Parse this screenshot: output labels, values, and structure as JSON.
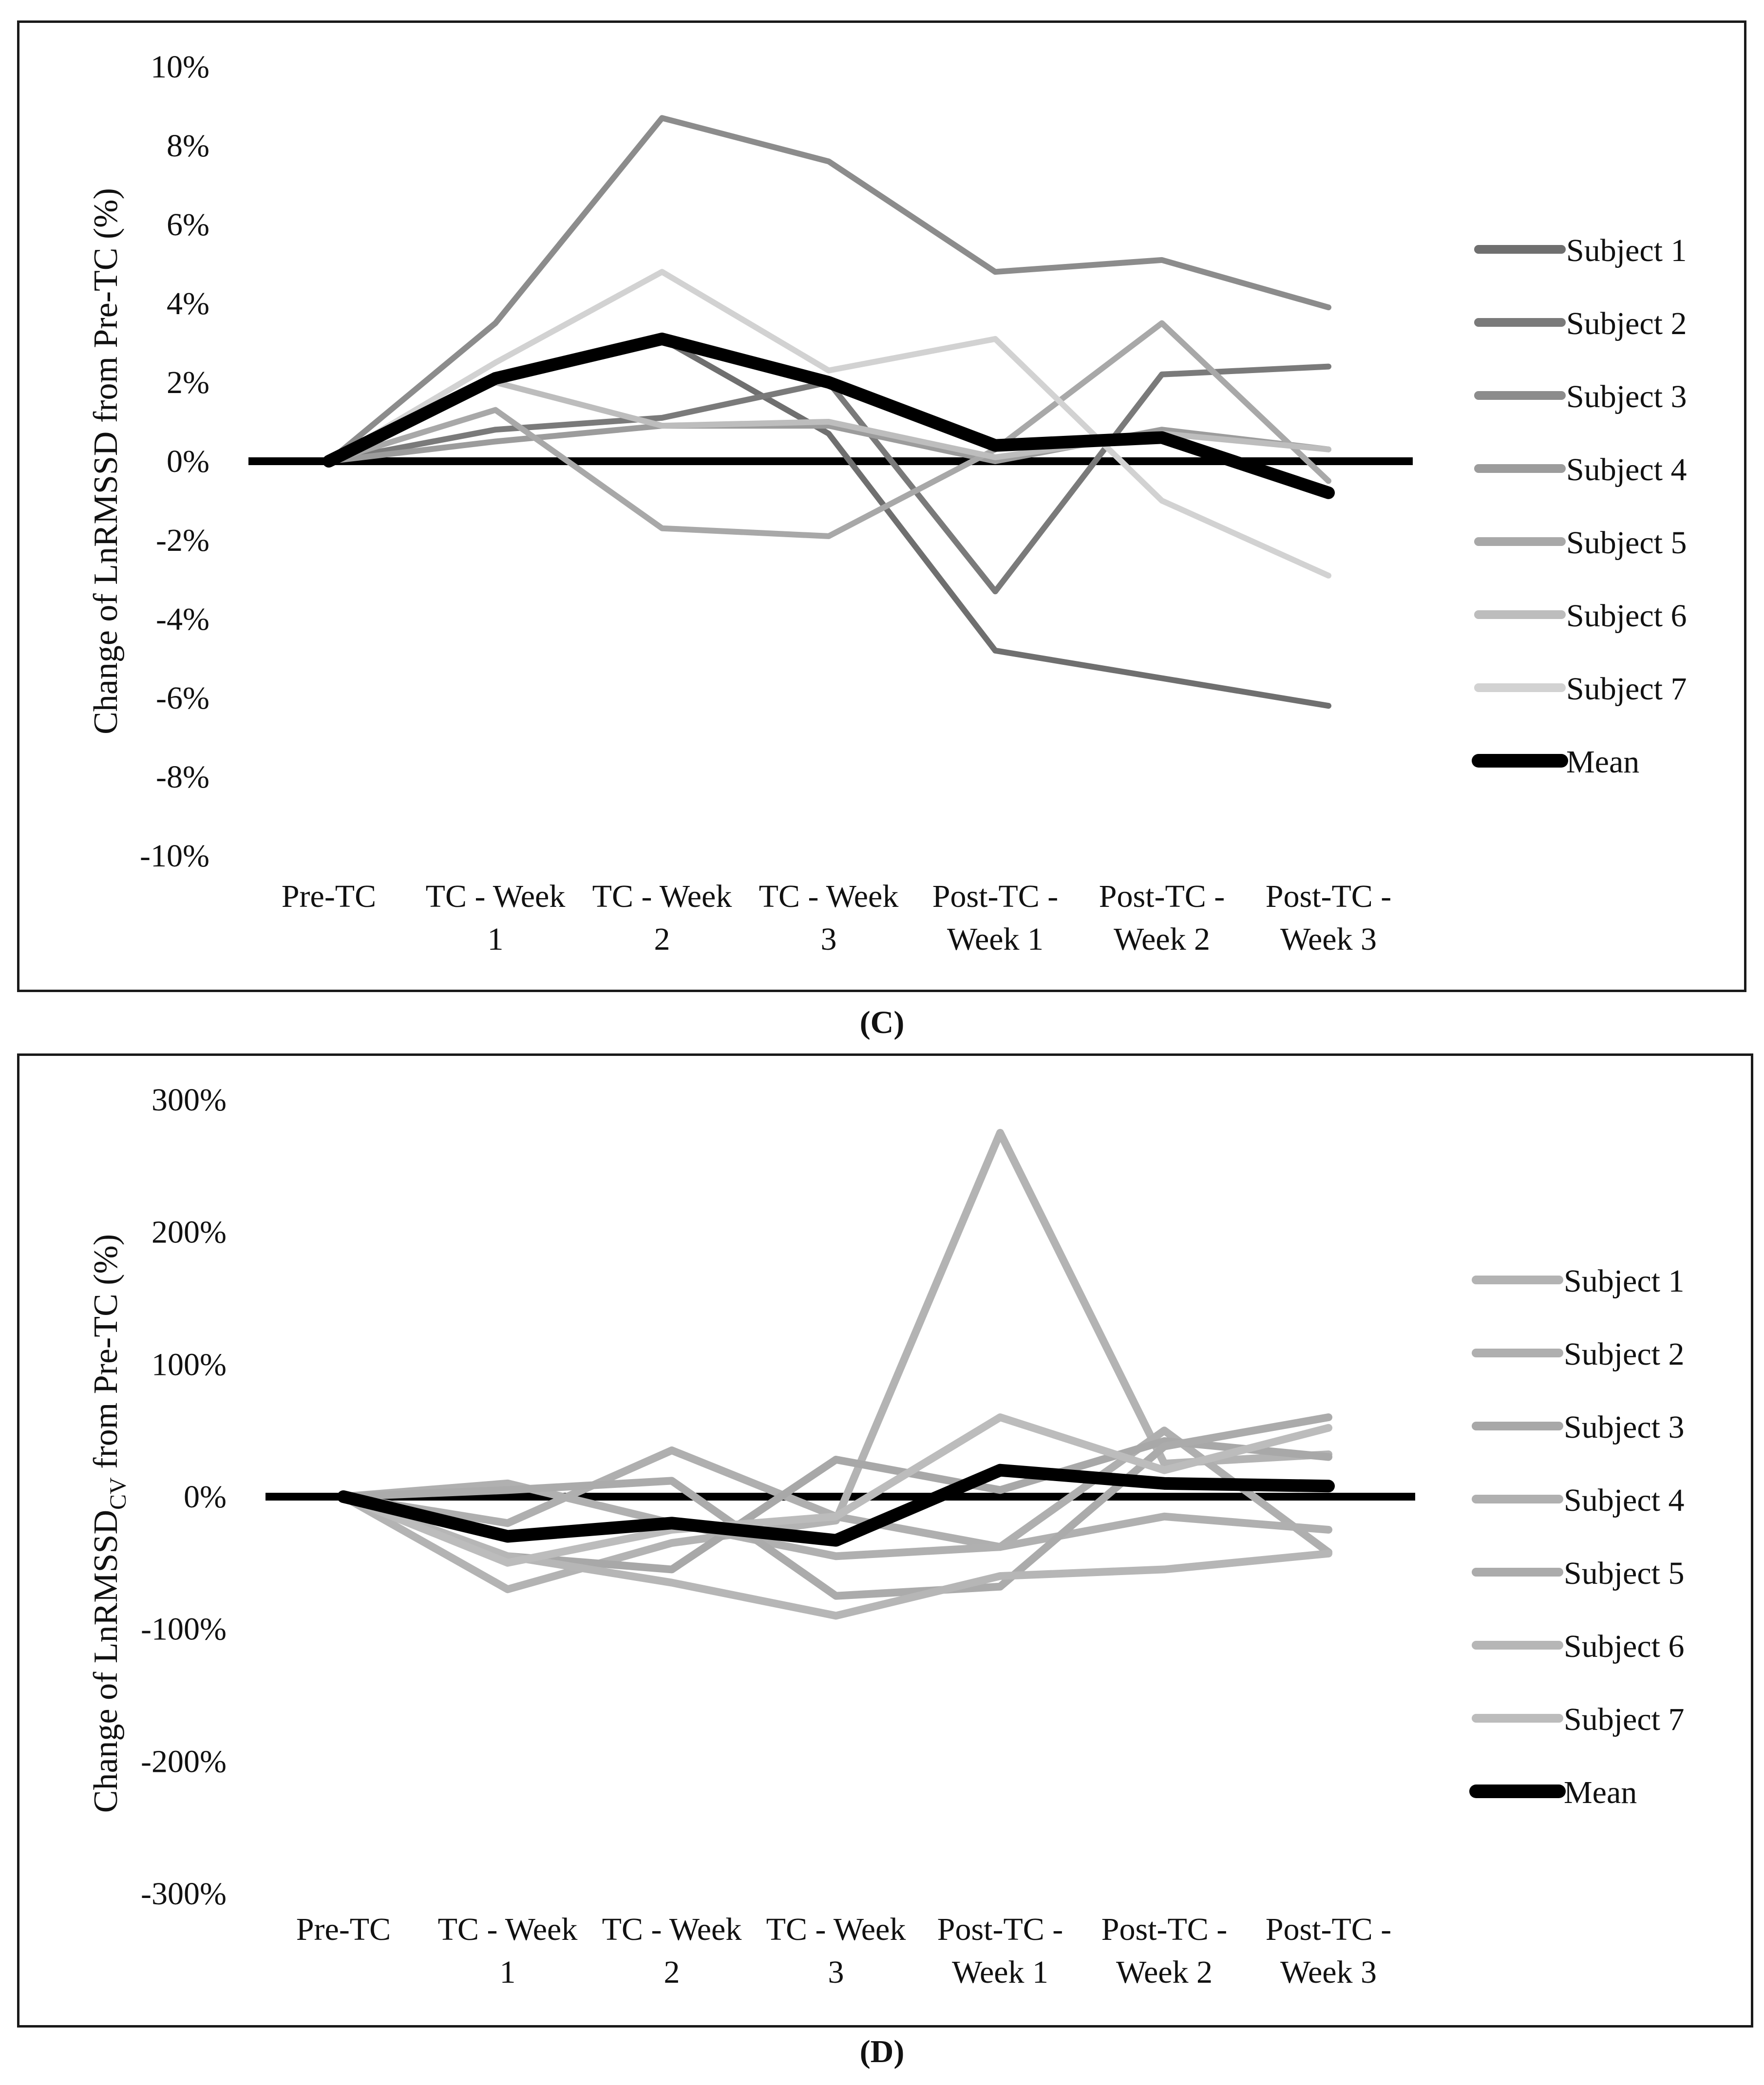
{
  "chart_data": [
    {
      "type": "line",
      "panel": "C",
      "caption": "(C)",
      "ylabel": "Change of LnRMSSD from Pre-TC (%)",
      "ylabel_main": "Change of LnRMSSD",
      "ylabel_sub": "",
      "ylabel_tail": " from Pre-TC (%)",
      "xlabel": "",
      "ylim": [
        -10,
        10
      ],
      "yticks": [
        10,
        8,
        6,
        4,
        2,
        0,
        -2,
        -4,
        -6,
        -8,
        -10
      ],
      "ytick_labels": [
        "10%",
        "8%",
        "6%",
        "4%",
        "2%",
        "0%",
        "-2%",
        "-4%",
        "-6%",
        "-8%",
        "-10%"
      ],
      "categories": [
        "Pre-TC",
        "TC - Week 1",
        "TC - Week 2",
        "TC - Week 3",
        "Post-TC - Week 1",
        "Post-TC - Week 2",
        "Post-TC - Week 3"
      ],
      "category_lines": [
        [
          "Pre-TC"
        ],
        [
          "TC - Week",
          "1"
        ],
        [
          "TC - Week",
          "2"
        ],
        [
          "TC - Week",
          "3"
        ],
        [
          "Post-TC -",
          "Week 1"
        ],
        [
          "Post-TC -",
          "Week 2"
        ],
        [
          "Post-TC -",
          "Week 3"
        ]
      ],
      "legend_position": "right",
      "series": [
        {
          "name": "Subject 1",
          "color": "#6f6f6f",
          "values": [
            0,
            2.1,
            3.1,
            0.7,
            -4.8,
            -5.5,
            -6.2
          ]
        },
        {
          "name": "Subject 2",
          "color": "#7a7a7a",
          "values": [
            0,
            0.8,
            1.1,
            2.0,
            -3.3,
            2.2,
            2.4
          ]
        },
        {
          "name": "Subject 3",
          "color": "#8c8c8c",
          "values": [
            0,
            3.5,
            8.7,
            7.6,
            4.8,
            5.1,
            3.9
          ]
        },
        {
          "name": "Subject 4",
          "color": "#9c9c9c",
          "values": [
            0,
            0.5,
            0.9,
            0.9,
            0.0,
            0.8,
            0.3
          ]
        },
        {
          "name": "Subject 5",
          "color": "#a8a8a8",
          "values": [
            0,
            1.3,
            -1.7,
            -1.9,
            0.3,
            3.5,
            -0.5
          ]
        },
        {
          "name": "Subject 6",
          "color": "#bdbdbd",
          "values": [
            0,
            2.0,
            0.9,
            1.0,
            0.1,
            0.7,
            0.3
          ]
        },
        {
          "name": "Subject 7",
          "color": "#d2d2d2",
          "values": [
            0,
            2.5,
            4.8,
            2.3,
            3.1,
            -1.0,
            -2.9
          ]
        },
        {
          "name": "Mean",
          "color": "#000000",
          "values": [
            0,
            2.1,
            3.1,
            2.0,
            0.4,
            0.6,
            -0.8
          ],
          "bold": true
        }
      ]
    },
    {
      "type": "line",
      "panel": "D",
      "caption": "(D)",
      "ylabel": "Change of LnRMSSDCV from Pre-TC (%)",
      "ylabel_main": "Change of LnRMSSD",
      "ylabel_sub": "CV",
      "ylabel_tail": " from Pre-TC (%)",
      "xlabel": "",
      "ylim": [
        -300,
        300
      ],
      "yticks": [
        300,
        200,
        100,
        0,
        -100,
        -200,
        -300
      ],
      "ytick_labels": [
        "300%",
        "200%",
        "100%",
        "0%",
        "-100%",
        "-200%",
        "-300%"
      ],
      "categories": [
        "Pre-TC",
        "TC - Week 1",
        "TC - Week 2",
        "TC - Week 3",
        "Post-TC - Week 1",
        "Post-TC - Week 2",
        "Post-TC - Week 3"
      ],
      "category_lines": [
        [
          "Pre-TC"
        ],
        [
          "TC - Week",
          "1"
        ],
        [
          "TC - Week",
          "2"
        ],
        [
          "TC - Week",
          "3"
        ],
        [
          "Post-TC -",
          "Week 1"
        ],
        [
          "Post-TC -",
          "Week 2"
        ],
        [
          "Post-TC -",
          "Week 3"
        ]
      ],
      "legend_position": "right",
      "series": [
        {
          "name": "Subject 1",
          "color": "#b3b3b3",
          "values": [
            0,
            -70,
            -35,
            -18,
            275,
            25,
            32
          ]
        },
        {
          "name": "Subject 2",
          "color": "#afafaf",
          "values": [
            0,
            -20,
            35,
            -15,
            -38,
            50,
            -42
          ]
        },
        {
          "name": "Subject 3",
          "color": "#a8a8a8",
          "values": [
            0,
            -45,
            -55,
            28,
            5,
            42,
            30
          ]
        },
        {
          "name": "Subject 4",
          "color": "#b0b0b0",
          "values": [
            0,
            10,
            -20,
            -45,
            -38,
            -15,
            -25
          ]
        },
        {
          "name": "Subject 5",
          "color": "#ababab",
          "values": [
            0,
            5,
            12,
            -75,
            -68,
            38,
            60
          ]
        },
        {
          "name": "Subject 6",
          "color": "#b6b6b6",
          "values": [
            0,
            -45,
            -65,
            -90,
            -60,
            -55,
            -43
          ]
        },
        {
          "name": "Subject 7",
          "color": "#bcbcbc",
          "values": [
            0,
            -50,
            -25,
            -15,
            60,
            20,
            52
          ]
        },
        {
          "name": "Mean",
          "color": "#000000",
          "values": [
            0,
            -30,
            -20,
            -33,
            20,
            10,
            8
          ],
          "bold": true
        }
      ]
    }
  ]
}
